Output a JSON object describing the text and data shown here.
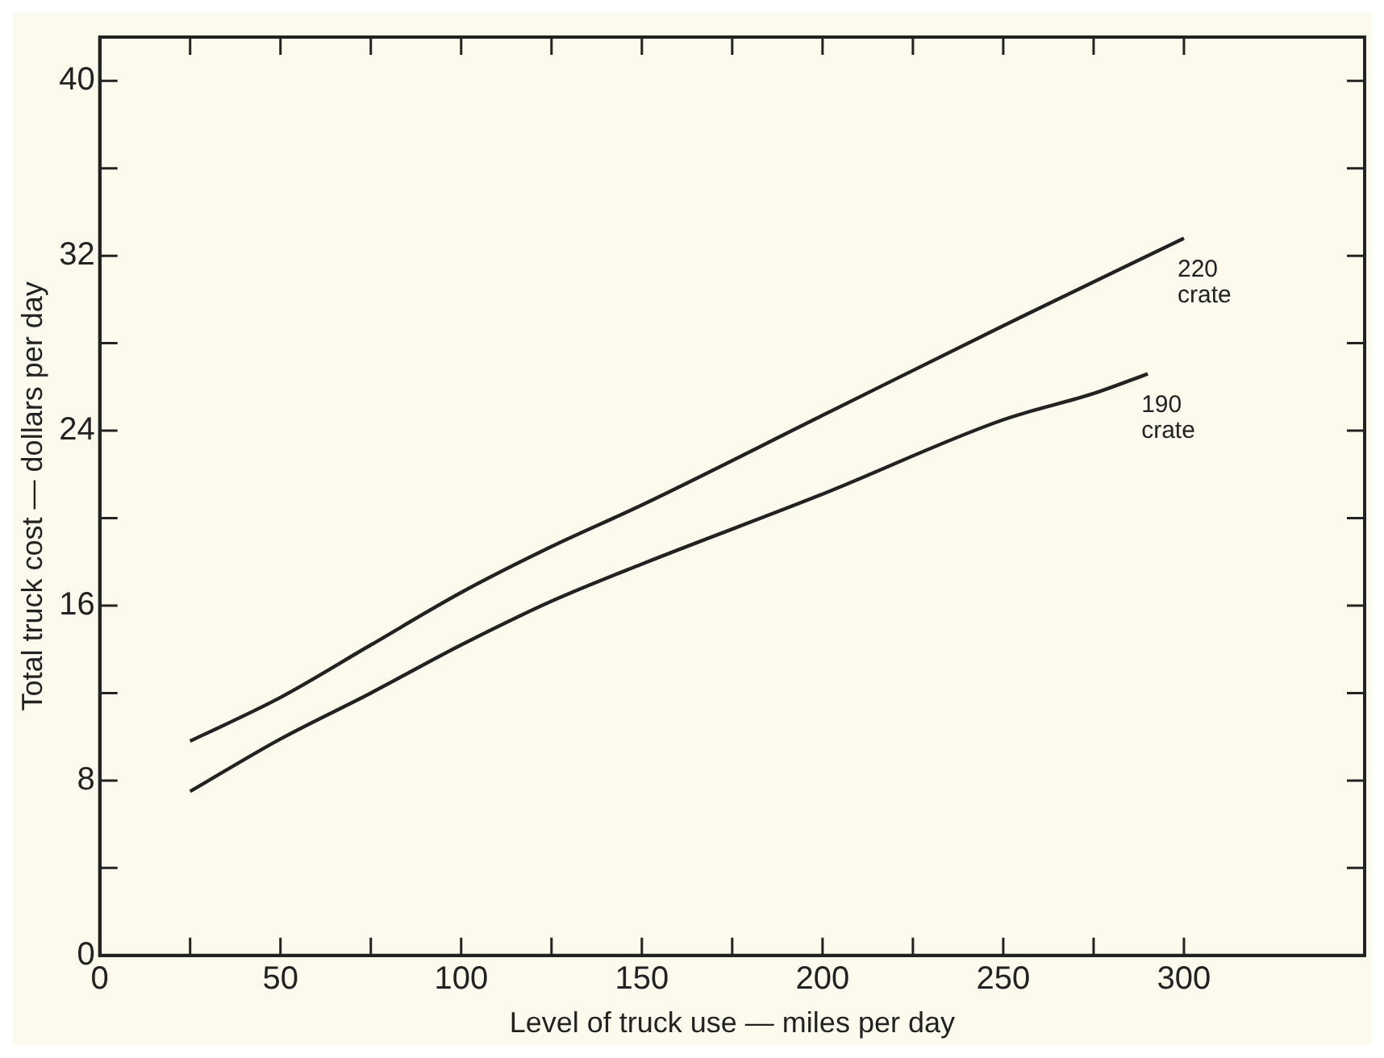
{
  "chart_data": {
    "type": "line",
    "xlabel": "Level of truck use — miles per day",
    "ylabel": "Total truck cost — dollars per day",
    "xlim": [
      0,
      350
    ],
    "ylim": [
      0,
      42
    ],
    "xticks": [
      0,
      {
        "value": 25,
        "label": null
      },
      50,
      {
        "value": 75,
        "label": null
      },
      100,
      {
        "value": 125,
        "label": null
      },
      150,
      {
        "value": 175,
        "label": null
      },
      200,
      {
        "value": 225,
        "label": null
      },
      250,
      {
        "value": 275,
        "label": null
      },
      300
    ],
    "yticks": [
      0,
      {
        "value": 4,
        "label": null
      },
      8,
      {
        "value": 12,
        "label": null
      },
      16,
      {
        "value": 20,
        "label": null
      },
      24,
      {
        "value": 28,
        "label": null
      },
      32,
      {
        "value": 36,
        "label": null
      },
      40
    ],
    "grid": false,
    "legend": false,
    "marker": "none",
    "line_style": "solid",
    "series": [
      {
        "color": "#222222",
        "x": [
          25,
          50,
          75,
          100,
          125,
          150,
          200,
          250,
          300
        ],
        "values": [
          9.8,
          11.8,
          14.2,
          16.6,
          18.7,
          20.6,
          24.7,
          28.8,
          32.8
        ]
      },
      {
        "color": "#222222",
        "x": [
          25,
          50,
          75,
          100,
          125,
          150,
          200,
          250,
          275,
          290
        ],
        "values": [
          7.5,
          9.9,
          12.0,
          14.2,
          16.2,
          17.9,
          21.1,
          24.5,
          25.7,
          26.6
        ]
      }
    ],
    "annotations": [
      {
        "text": "220\ncrate",
        "x": 300,
        "y": 32.8
      },
      {
        "text": "190\ncrate",
        "x": 290,
        "y": 26.6
      }
    ]
  }
}
